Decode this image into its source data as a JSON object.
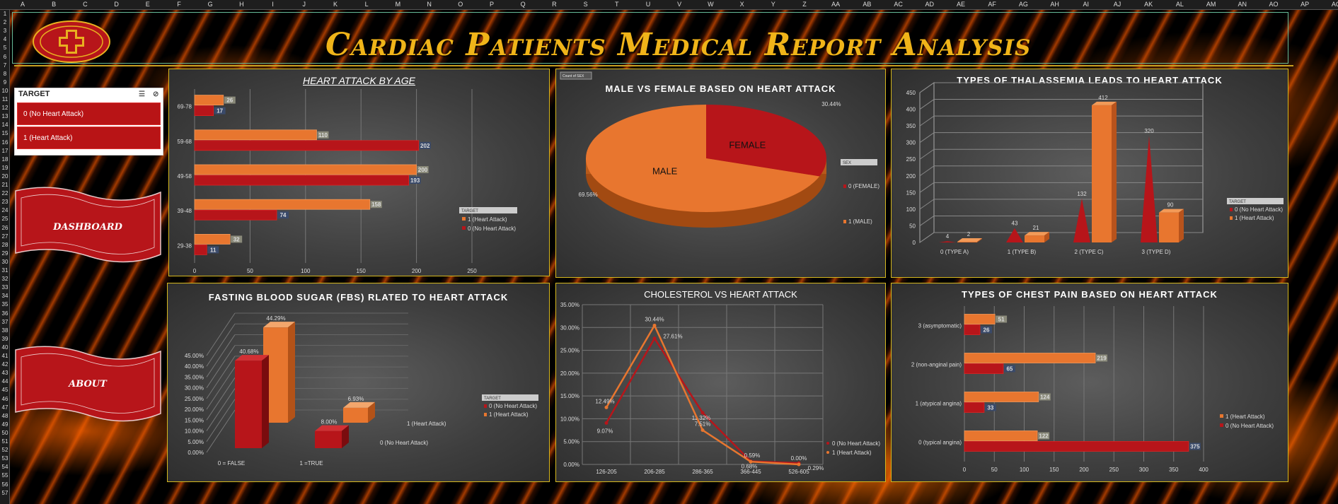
{
  "sheet": {
    "columns": [
      "A",
      "B",
      "C",
      "D",
      "E",
      "F",
      "G",
      "H",
      "I",
      "J",
      "K",
      "L",
      "M",
      "N",
      "O",
      "P",
      "Q",
      "R",
      "S",
      "T",
      "U",
      "V",
      "W",
      "X",
      "Y",
      "Z",
      "AA",
      "AB",
      "AC",
      "AD",
      "AE",
      "AF",
      "AG",
      "AH",
      "AI",
      "AJ",
      "AK",
      "AL",
      "AM",
      "AN",
      "AO",
      "AP",
      "AQ"
    ],
    "rows": [
      "1",
      "2",
      "3",
      "4",
      "5",
      "6",
      "7",
      "8",
      "9",
      "10",
      "11",
      "12",
      "13",
      "14",
      "15",
      "16",
      "17",
      "18",
      "19",
      "20",
      "21",
      "22",
      "23",
      "24",
      "25",
      "26",
      "27",
      "28",
      "29",
      "30",
      "31",
      "32",
      "33",
      "34",
      "35",
      "36",
      "37",
      "38",
      "39",
      "40",
      "41",
      "42",
      "43",
      "44",
      "45",
      "46",
      "47",
      "48",
      "49",
      "50",
      "51",
      "52",
      "53",
      "54",
      "55",
      "56",
      "57"
    ]
  },
  "header": {
    "title": "Cardiac Patients Medical Report Analysis"
  },
  "slicer": {
    "title": "TARGET",
    "items": [
      "0 (No Heart Attack)",
      "1 (Heart Attack)"
    ]
  },
  "nav": {
    "dashboard": "DASHBOARD",
    "about": "ABOUT"
  },
  "colors": {
    "orange": "#e8762f",
    "red": "#b7151a",
    "gold": "#d6b81e"
  },
  "chart_data": [
    {
      "id": "age",
      "type": "bar",
      "title": "HEART ATTACK BY AGE",
      "categories": [
        "69-78",
        "59-68",
        "49-58",
        "39-48",
        "29-38"
      ],
      "series": [
        {
          "name": "1 (Heart Attack)",
          "values": [
            26,
            110,
            200,
            158,
            32
          ]
        },
        {
          "name": "0 (No Heart Attack)",
          "values": [
            17,
            202,
            193,
            74,
            11
          ]
        }
      ],
      "xticks": [
        "0",
        "50",
        "100",
        "150",
        "200",
        "250"
      ],
      "xlim": [
        0,
        250
      ],
      "legend_title": "TARGET"
    },
    {
      "id": "sex",
      "type": "pie",
      "title": "MALE VS FEMALE BASED ON HEART ATTACK",
      "tag": "Count of SEX",
      "legend_title": "SEX",
      "slices": [
        {
          "name": "0 (FEMALE)",
          "label": "FEMALE",
          "pct": "30.44%",
          "value": 30.44
        },
        {
          "name": "1 (MALE)",
          "label": "MALE",
          "pct": "69.56%",
          "value": 69.56
        }
      ]
    },
    {
      "id": "thal",
      "type": "bar",
      "title": "TYPES OF THALASSEMIA  LEADS TO HEART ATTACK",
      "categories": [
        "0 (TYPE A)",
        "1 (TYPE B)",
        "2 (TYPE C)",
        "3 (TYPE D)"
      ],
      "series": [
        {
          "name": "0 (No Heart Attack)",
          "values": [
            4,
            43,
            132,
            320
          ]
        },
        {
          "name": "1 (Heart Attack)",
          "values": [
            2,
            21,
            412,
            90
          ]
        }
      ],
      "yticks": [
        "0",
        "50",
        "100",
        "150",
        "200",
        "250",
        "300",
        "350",
        "400",
        "450"
      ],
      "ylim": [
        0,
        450
      ],
      "legend_title": "TARGET"
    },
    {
      "id": "fbs",
      "type": "bar",
      "title": "FASTING BLOOD SUGAR (FBS) RLATED TO HEART ATTACK",
      "categories": [
        "0 = FALSE",
        "1 =TRUE"
      ],
      "series": [
        {
          "name": "0 (No Heart Attack)",
          "values": [
            40.68,
            8.0
          ],
          "labels": [
            "40.68%",
            "8.00%"
          ]
        },
        {
          "name": "1 (Heart Attack)",
          "values": [
            44.29,
            6.93
          ],
          "labels": [
            "44.29%",
            "6.93%"
          ]
        }
      ],
      "yticks": [
        "0.00%",
        "5.00%",
        "10.00%",
        "15.00%",
        "20.00%",
        "25.00%",
        "30.00%",
        "35.00%",
        "40.00%",
        "45.00%"
      ],
      "depth_labels": [
        "1 (Heart Attack)",
        "0 (No Heart Attack)"
      ],
      "legend_title": "TARGET"
    },
    {
      "id": "chol",
      "type": "line",
      "title": "CHOLESTEROL VS HEART ATTACK",
      "categories": [
        "126-205",
        "206-285",
        "286-365",
        "366-445",
        "526-605"
      ],
      "series": [
        {
          "name": "0  (No Heart Attack)",
          "values": [
            9.07,
            27.61,
            11.32,
            0.68,
            0.29
          ],
          "labels": [
            "9.07%",
            "27.61%",
            "11.32%",
            "0.68%",
            "0.29%"
          ]
        },
        {
          "name": "1  (Heart Attack)",
          "values": [
            12.49,
            30.44,
            7.51,
            0.59,
            0.0
          ],
          "labels": [
            "12.49%",
            "30.44%",
            "7.51%",
            "0.59%",
            "0.00%"
          ]
        }
      ],
      "yticks": [
        "0.00%",
        "5.00%",
        "10.00%",
        "15.00%",
        "20.00%",
        "25.00%",
        "30.00%",
        "35.00%"
      ],
      "ylim": [
        0,
        35
      ]
    },
    {
      "id": "cp",
      "type": "bar",
      "title": "TYPES OF CHEST PAIN BASED ON HEART ATTACK",
      "categories": [
        "3 (asymptomatic)",
        "2 (non-anginal pain)",
        "1 (atypical angina)",
        "0 (typical angina)"
      ],
      "series": [
        {
          "name": "1 (Heart Attack)",
          "values": [
            51,
            219,
            124,
            122
          ]
        },
        {
          "name": "0 (No Heart Attack)",
          "values": [
            26,
            65,
            33,
            375
          ]
        }
      ],
      "xticks": [
        "0",
        "50",
        "100",
        "150",
        "200",
        "250",
        "300",
        "350",
        "400"
      ],
      "xlim": [
        0,
        400
      ]
    }
  ]
}
